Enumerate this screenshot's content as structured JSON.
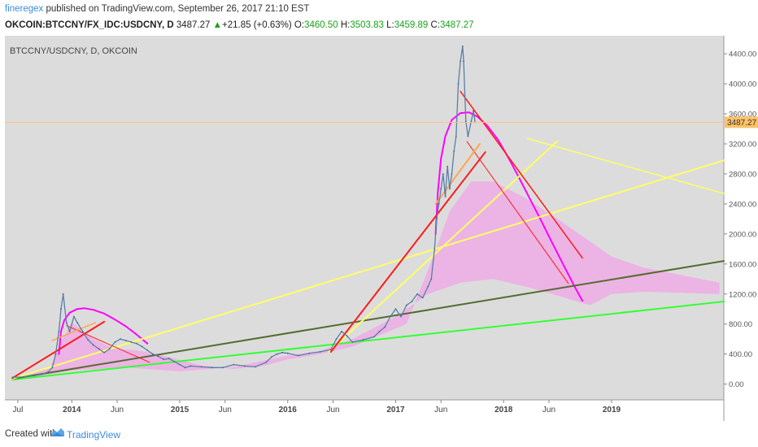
{
  "header": {
    "author": "fineregex",
    "published": " published on TradingView.com, September 26, 2017 21:10 EST",
    "symbol": "OKCOIN:BTCCNY/FX_IDC:USDCNY, D",
    "last": "3487.27",
    "change": "+21.85 (+0.63%)",
    "o_label": "O:",
    "o": "3460.50",
    "h_label": "H:",
    "h": "3503.83",
    "l_label": "L:",
    "l": "3459.89",
    "c_label": "C:",
    "c": "3487.27"
  },
  "footer": {
    "created": "Created with",
    "brand": "TradingView"
  },
  "colors": {
    "plot_bg": "#dcdcdc",
    "price_line": "#ffa64d",
    "pink": "#ff00ff",
    "pink_fill": "#f1a6e8",
    "red": "#ff1a1a",
    "yellow": "#ffff66",
    "green": "#33ff33",
    "dark_green": "#556b2f"
  },
  "chart_data": {
    "type": "line",
    "title": "BTCCNY/USDCNY, D, OKCOIN",
    "x_tick_labels": [
      "Jul",
      "2014",
      "Jun",
      "2015",
      "Jun",
      "2016",
      "Jun",
      "2017",
      "Jun",
      "2018",
      "Jun",
      "2019"
    ],
    "y_tick_labels": [
      "0.00",
      "400.00",
      "800.00",
      "1200.00",
      "1600.00",
      "2000.00",
      "2400.00",
      "2800.00",
      "3200.00",
      "3600.00",
      "4000.00",
      "4400.00"
    ],
    "y_ticks": [
      0,
      400,
      800,
      1200,
      1600,
      2000,
      2400,
      2800,
      3200,
      3600,
      4000,
      4400
    ],
    "ylim": [
      -210,
      4640
    ],
    "xlim": [
      2013.38,
      2020.04
    ],
    "last_price": 3487.27,
    "last_price_label": "3487.27",
    "series": [
      {
        "values": [
          [
            2013.45,
            90
          ],
          [
            2013.55,
            95
          ],
          [
            2013.65,
            110
          ],
          [
            2013.72,
            130
          ],
          [
            2013.78,
            160
          ],
          [
            2013.82,
            220
          ],
          [
            2013.85,
            400
          ],
          [
            2013.88,
            700
          ],
          [
            2013.9,
            1000
          ],
          [
            2013.92,
            1200
          ],
          [
            2013.95,
            820
          ],
          [
            2013.98,
            700
          ],
          [
            2014.02,
            900
          ],
          [
            2014.05,
            820
          ],
          [
            2014.1,
            700
          ],
          [
            2014.15,
            590
          ],
          [
            2014.2,
            520
          ],
          [
            2014.25,
            470
          ],
          [
            2014.3,
            420
          ],
          [
            2014.35,
            470
          ],
          [
            2014.4,
            560
          ],
          [
            2014.45,
            600
          ],
          [
            2014.5,
            580
          ],
          [
            2014.55,
            560
          ],
          [
            2014.6,
            540
          ],
          [
            2014.65,
            500
          ],
          [
            2014.7,
            450
          ],
          [
            2014.75,
            400
          ],
          [
            2014.8,
            370
          ],
          [
            2014.85,
            330
          ],
          [
            2014.9,
            340
          ],
          [
            2014.95,
            300
          ],
          [
            2015.0,
            260
          ],
          [
            2015.05,
            220
          ],
          [
            2015.1,
            240
          ],
          [
            2015.2,
            230
          ],
          [
            2015.3,
            220
          ],
          [
            2015.4,
            220
          ],
          [
            2015.5,
            260
          ],
          [
            2015.6,
            240
          ],
          [
            2015.7,
            230
          ],
          [
            2015.8,
            290
          ],
          [
            2015.85,
            360
          ],
          [
            2015.9,
            400
          ],
          [
            2015.95,
            420
          ],
          [
            2016.0,
            410
          ],
          [
            2016.1,
            380
          ],
          [
            2016.2,
            410
          ],
          [
            2016.3,
            430
          ],
          [
            2016.4,
            460
          ],
          [
            2016.45,
            600
          ],
          [
            2016.5,
            700
          ],
          [
            2016.55,
            640
          ],
          [
            2016.6,
            560
          ],
          [
            2016.7,
            590
          ],
          [
            2016.8,
            630
          ],
          [
            2016.85,
            700
          ],
          [
            2016.9,
            760
          ],
          [
            2016.95,
            900
          ],
          [
            2017.0,
            1000
          ],
          [
            2017.05,
            900
          ],
          [
            2017.1,
            1050
          ],
          [
            2017.15,
            1100
          ],
          [
            2017.2,
            1200
          ],
          [
            2017.25,
            1150
          ],
          [
            2017.3,
            1300
          ],
          [
            2017.33,
            1400
          ],
          [
            2017.36,
            1800
          ],
          [
            2017.38,
            2200
          ],
          [
            2017.4,
            2400
          ],
          [
            2017.42,
            2600
          ],
          [
            2017.44,
            2800
          ],
          [
            2017.46,
            2500
          ],
          [
            2017.48,
            2900
          ],
          [
            2017.5,
            2600
          ],
          [
            2017.52,
            2800
          ],
          [
            2017.54,
            3100
          ],
          [
            2017.56,
            3300
          ],
          [
            2017.58,
            4000
          ],
          [
            2017.6,
            4300
          ],
          [
            2017.62,
            4500
          ],
          [
            2017.63,
            4300
          ],
          [
            2017.65,
            3500
          ],
          [
            2017.67,
            3300
          ],
          [
            2017.7,
            3500
          ],
          [
            2017.72,
            3640
          ],
          [
            2017.735,
            3487.27
          ]
        ]
      }
    ],
    "drawings": [
      {
        "kind": "fill",
        "color": "pink",
        "points": [
          [
            2013.48,
            80
          ],
          [
            2013.8,
            220
          ],
          [
            2013.9,
            560
          ],
          [
            2014.0,
            820
          ],
          [
            2014.2,
            600
          ],
          [
            2014.4,
            470
          ],
          [
            2014.6,
            450
          ],
          [
            2014.8,
            400
          ],
          [
            2015.0,
            320
          ],
          [
            2015.2,
            250
          ],
          [
            2015.5,
            200
          ],
          [
            2015.8,
            250
          ],
          [
            2016.0,
            330
          ],
          [
            2016.3,
            400
          ],
          [
            2016.6,
            500
          ],
          [
            2017.1,
            800
          ],
          [
            2017.35,
            1700
          ],
          [
            2017.5,
            2300
          ],
          [
            2017.7,
            2700
          ],
          [
            2017.9,
            2700
          ],
          [
            2018.2,
            2480
          ],
          [
            2018.5,
            2200
          ],
          [
            2018.8,
            1900
          ],
          [
            2019.0,
            1700
          ],
          [
            2019.3,
            1550
          ],
          [
            2020.0,
            1350
          ],
          [
            2020.0,
            1200
          ],
          [
            2019.3,
            1230
          ],
          [
            2019.0,
            1200
          ],
          [
            2018.8,
            1050
          ],
          [
            2018.5,
            1180
          ],
          [
            2018.2,
            1300
          ],
          [
            2017.9,
            1400
          ],
          [
            2017.6,
            1350
          ],
          [
            2017.3,
            1200
          ],
          [
            2017.0,
            900
          ],
          [
            2016.6,
            600
          ],
          [
            2016.3,
            440
          ],
          [
            2016.0,
            380
          ],
          [
            2015.5,
            230
          ],
          [
            2015.0,
            170
          ],
          [
            2014.5,
            220
          ],
          [
            2014.0,
            180
          ],
          [
            2013.48,
            60
          ]
        ]
      },
      {
        "kind": "poly",
        "color": "pink",
        "width": 2,
        "points": [
          [
            2013.88,
            400
          ],
          [
            2013.9,
            700
          ],
          [
            2013.93,
            850
          ],
          [
            2013.98,
            950
          ],
          [
            2014.05,
            1000
          ],
          [
            2014.12,
            1010
          ],
          [
            2014.2,
            990
          ],
          [
            2014.3,
            940
          ],
          [
            2014.4,
            860
          ],
          [
            2014.5,
            770
          ],
          [
            2014.6,
            660
          ],
          [
            2014.7,
            540
          ]
        ]
      },
      {
        "kind": "poly",
        "color": "pink",
        "width": 2,
        "points": [
          [
            2017.37,
            2000
          ],
          [
            2017.39,
            2550
          ],
          [
            2017.42,
            3000
          ],
          [
            2017.46,
            3300
          ],
          [
            2017.52,
            3520
          ],
          [
            2017.6,
            3610
          ],
          [
            2017.68,
            3620
          ],
          [
            2017.76,
            3560
          ],
          [
            2017.85,
            3440
          ],
          [
            2017.95,
            3250
          ],
          [
            2018.05,
            3000
          ],
          [
            2018.15,
            2730
          ],
          [
            2018.25,
            2450
          ],
          [
            2018.35,
            2170
          ],
          [
            2018.45,
            1880
          ],
          [
            2018.55,
            1600
          ],
          [
            2018.65,
            1320
          ],
          [
            2018.73,
            1110
          ]
        ]
      },
      {
        "kind": "line",
        "color": "green",
        "width": 2,
        "points": [
          [
            2013.45,
            60
          ],
          [
            2020.04,
            1100
          ]
        ]
      },
      {
        "kind": "line",
        "color": "dark_green",
        "width": 2,
        "points": [
          [
            2013.45,
            70
          ],
          [
            2020.04,
            1640
          ]
        ]
      },
      {
        "kind": "line",
        "color": "yellow",
        "width": 2,
        "points": [
          [
            2013.45,
            70
          ],
          [
            2020.04,
            2980
          ]
        ]
      },
      {
        "kind": "line",
        "color": "yellow",
        "width": 2,
        "points": [
          [
            2016.38,
            430
          ],
          [
            2018.5,
            3240
          ]
        ]
      },
      {
        "kind": "line",
        "color": "yellow",
        "width": 1.5,
        "points": [
          [
            2018.22,
            3270
          ],
          [
            2020.04,
            2540
          ]
        ]
      },
      {
        "kind": "line",
        "color": "red",
        "width": 2,
        "points": [
          [
            2013.45,
            80
          ],
          [
            2014.3,
            830
          ]
        ]
      },
      {
        "kind": "line",
        "color": "red",
        "width": 2,
        "points": [
          [
            2016.4,
            430
          ],
          [
            2017.83,
            3090
          ]
        ]
      },
      {
        "kind": "line",
        "color": "red",
        "width": 1.5,
        "points": [
          [
            2017.6,
            3900
          ],
          [
            2018.73,
            1680
          ]
        ]
      },
      {
        "kind": "line",
        "color": "red",
        "width": 1,
        "points": [
          [
            2017.66,
            3230
          ],
          [
            2018.6,
            1340
          ]
        ]
      },
      {
        "kind": "line",
        "color": "red",
        "width": 1,
        "points": [
          [
            2013.95,
            780
          ],
          [
            2014.72,
            290
          ]
        ]
      },
      {
        "kind": "line",
        "color": "price_line",
        "width": 2,
        "points": [
          [
            2017.37,
            2400
          ],
          [
            2017.78,
            3200
          ]
        ]
      },
      {
        "kind": "line",
        "color": "price_line",
        "width": 1.5,
        "points": [
          [
            2013.82,
            580
          ],
          [
            2014.22,
            820
          ]
        ]
      }
    ]
  }
}
